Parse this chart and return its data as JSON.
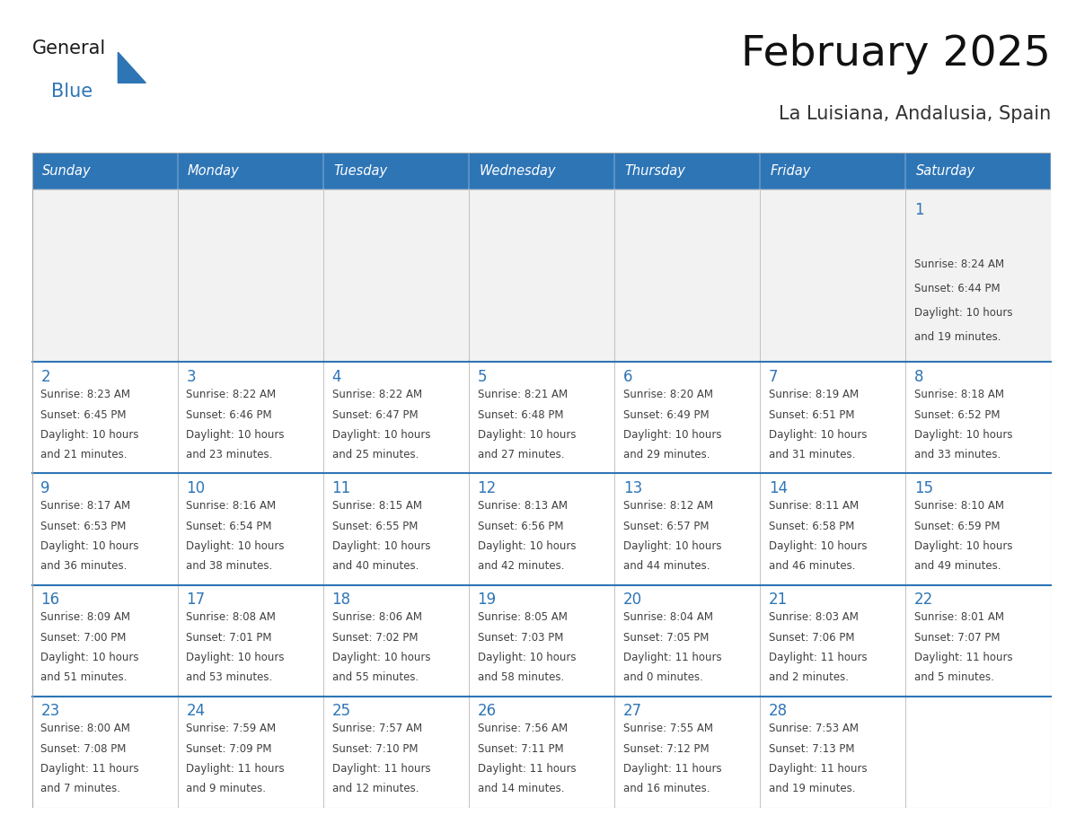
{
  "title": "February 2025",
  "subtitle": "La Luisiana, Andalusia, Spain",
  "header_bg": "#2E75B6",
  "header_text_color": "#FFFFFF",
  "days_of_week": [
    "Sunday",
    "Monday",
    "Tuesday",
    "Wednesday",
    "Thursday",
    "Friday",
    "Saturday"
  ],
  "cell_bg": "#FFFFFF",
  "cell_bg_alt": "#F2F2F2",
  "cell_border": "#AAAAAA",
  "top_border": "#2E75B6",
  "day_number_color": "#2E75B6",
  "info_text_color": "#404040",
  "logo_general_color": "#1A1A1A",
  "logo_blue_color": "#2E75B6",
  "calendar": [
    [
      null,
      null,
      null,
      null,
      null,
      null,
      {
        "day": 1,
        "sunrise": "8:24 AM",
        "sunset": "6:44 PM",
        "daylight": "10 hours",
        "daylight2": "and 19 minutes."
      }
    ],
    [
      {
        "day": 2,
        "sunrise": "8:23 AM",
        "sunset": "6:45 PM",
        "daylight": "10 hours",
        "daylight2": "and 21 minutes."
      },
      {
        "day": 3,
        "sunrise": "8:22 AM",
        "sunset": "6:46 PM",
        "daylight": "10 hours",
        "daylight2": "and 23 minutes."
      },
      {
        "day": 4,
        "sunrise": "8:22 AM",
        "sunset": "6:47 PM",
        "daylight": "10 hours",
        "daylight2": "and 25 minutes."
      },
      {
        "day": 5,
        "sunrise": "8:21 AM",
        "sunset": "6:48 PM",
        "daylight": "10 hours",
        "daylight2": "and 27 minutes."
      },
      {
        "day": 6,
        "sunrise": "8:20 AM",
        "sunset": "6:49 PM",
        "daylight": "10 hours",
        "daylight2": "and 29 minutes."
      },
      {
        "day": 7,
        "sunrise": "8:19 AM",
        "sunset": "6:51 PM",
        "daylight": "10 hours",
        "daylight2": "and 31 minutes."
      },
      {
        "day": 8,
        "sunrise": "8:18 AM",
        "sunset": "6:52 PM",
        "daylight": "10 hours",
        "daylight2": "and 33 minutes."
      }
    ],
    [
      {
        "day": 9,
        "sunrise": "8:17 AM",
        "sunset": "6:53 PM",
        "daylight": "10 hours",
        "daylight2": "and 36 minutes."
      },
      {
        "day": 10,
        "sunrise": "8:16 AM",
        "sunset": "6:54 PM",
        "daylight": "10 hours",
        "daylight2": "and 38 minutes."
      },
      {
        "day": 11,
        "sunrise": "8:15 AM",
        "sunset": "6:55 PM",
        "daylight": "10 hours",
        "daylight2": "and 40 minutes."
      },
      {
        "day": 12,
        "sunrise": "8:13 AM",
        "sunset": "6:56 PM",
        "daylight": "10 hours",
        "daylight2": "and 42 minutes."
      },
      {
        "day": 13,
        "sunrise": "8:12 AM",
        "sunset": "6:57 PM",
        "daylight": "10 hours",
        "daylight2": "and 44 minutes."
      },
      {
        "day": 14,
        "sunrise": "8:11 AM",
        "sunset": "6:58 PM",
        "daylight": "10 hours",
        "daylight2": "and 46 minutes."
      },
      {
        "day": 15,
        "sunrise": "8:10 AM",
        "sunset": "6:59 PM",
        "daylight": "10 hours",
        "daylight2": "and 49 minutes."
      }
    ],
    [
      {
        "day": 16,
        "sunrise": "8:09 AM",
        "sunset": "7:00 PM",
        "daylight": "10 hours",
        "daylight2": "and 51 minutes."
      },
      {
        "day": 17,
        "sunrise": "8:08 AM",
        "sunset": "7:01 PM",
        "daylight": "10 hours",
        "daylight2": "and 53 minutes."
      },
      {
        "day": 18,
        "sunrise": "8:06 AM",
        "sunset": "7:02 PM",
        "daylight": "10 hours",
        "daylight2": "and 55 minutes."
      },
      {
        "day": 19,
        "sunrise": "8:05 AM",
        "sunset": "7:03 PM",
        "daylight": "10 hours",
        "daylight2": "and 58 minutes."
      },
      {
        "day": 20,
        "sunrise": "8:04 AM",
        "sunset": "7:05 PM",
        "daylight": "11 hours",
        "daylight2": "and 0 minutes."
      },
      {
        "day": 21,
        "sunrise": "8:03 AM",
        "sunset": "7:06 PM",
        "daylight": "11 hours",
        "daylight2": "and 2 minutes."
      },
      {
        "day": 22,
        "sunrise": "8:01 AM",
        "sunset": "7:07 PM",
        "daylight": "11 hours",
        "daylight2": "and 5 minutes."
      }
    ],
    [
      {
        "day": 23,
        "sunrise": "8:00 AM",
        "sunset": "7:08 PM",
        "daylight": "11 hours",
        "daylight2": "and 7 minutes."
      },
      {
        "day": 24,
        "sunrise": "7:59 AM",
        "sunset": "7:09 PM",
        "daylight": "11 hours",
        "daylight2": "and 9 minutes."
      },
      {
        "day": 25,
        "sunrise": "7:57 AM",
        "sunset": "7:10 PM",
        "daylight": "11 hours",
        "daylight2": "and 12 minutes."
      },
      {
        "day": 26,
        "sunrise": "7:56 AM",
        "sunset": "7:11 PM",
        "daylight": "11 hours",
        "daylight2": "and 14 minutes."
      },
      {
        "day": 27,
        "sunrise": "7:55 AM",
        "sunset": "7:12 PM",
        "daylight": "11 hours",
        "daylight2": "and 16 minutes."
      },
      {
        "day": 28,
        "sunrise": "7:53 AM",
        "sunset": "7:13 PM",
        "daylight": "11 hours",
        "daylight2": "and 19 minutes."
      },
      null
    ]
  ],
  "figsize": [
    11.88,
    9.18
  ],
  "dpi": 100
}
